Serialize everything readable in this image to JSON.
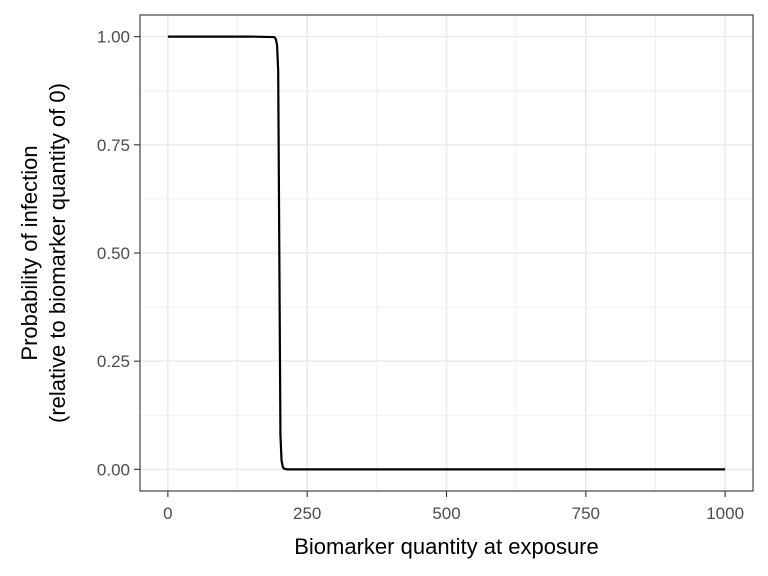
{
  "chart_data": {
    "type": "line",
    "xlabel": "Biomarker quantity at exposure",
    "ylabel_line1": "Probability of infection",
    "ylabel_line2": "(relative to biomarker quantity of 0)",
    "xlim": [
      -50,
      1050
    ],
    "ylim": [
      -0.05,
      1.05
    ],
    "x_ticks": [
      0,
      250,
      500,
      750,
      1000
    ],
    "x_tick_labels": [
      "0",
      "250",
      "500",
      "750",
      "1000"
    ],
    "y_ticks": [
      0,
      0.25,
      0.5,
      0.75,
      1.0
    ],
    "y_tick_labels": [
      "0.00",
      "0.25",
      "0.50",
      "0.75",
      "1.00"
    ],
    "grid": true,
    "series": [
      {
        "color": "#000000",
        "x": [
          0,
          150,
          190,
          192,
          194,
          196,
          198,
          200,
          202,
          204,
          206,
          208,
          210,
          215,
          250,
          500,
          750,
          1000
        ],
        "y": [
          1.0,
          1.0,
          0.999,
          0.998,
          0.993,
          0.98,
          0.92,
          0.5,
          0.08,
          0.02,
          0.007,
          0.002,
          0.001,
          0.0,
          0.0,
          0.0,
          0.0,
          0.0
        ]
      }
    ]
  }
}
